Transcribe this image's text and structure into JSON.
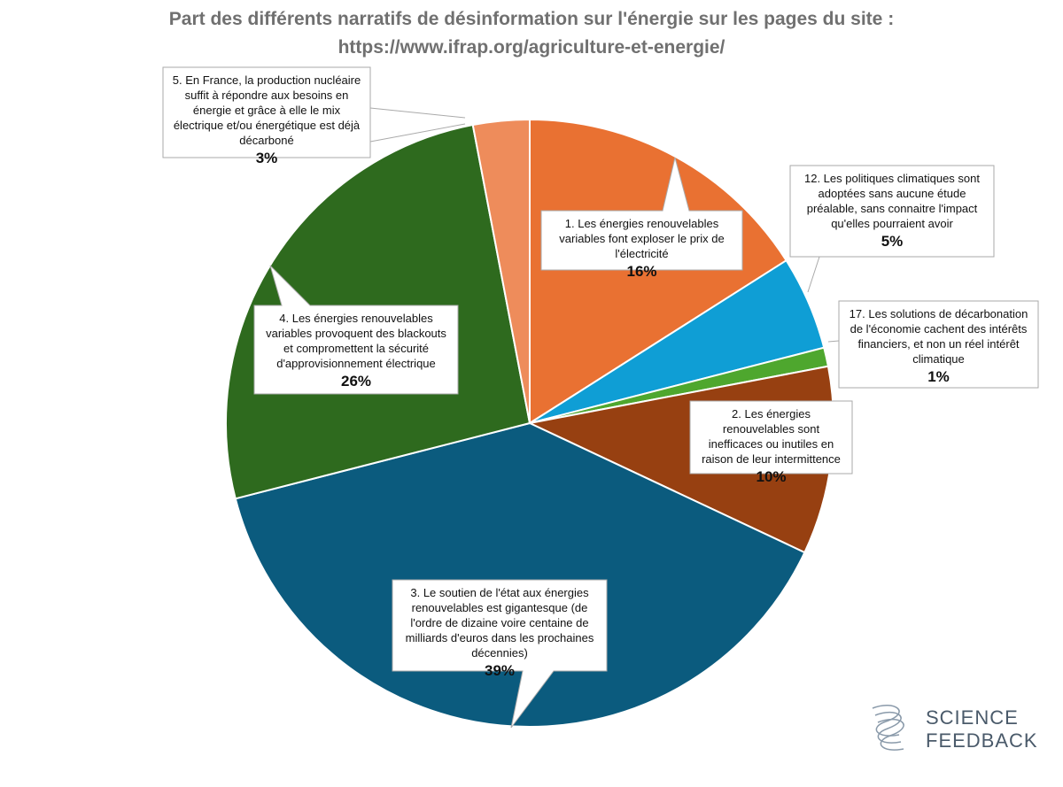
{
  "chart_data": {
    "type": "pie",
    "title": "Part des différents narratifs de désinformation sur l'énergie sur les pages du site :",
    "subtitle": "https://www.ifrap.org/agriculture-et-energie/",
    "categories": [
      "1. Les énergies renouvelables variables font exploser le prix de l'électricité",
      "12. Les politiques climatiques sont adoptées sans aucune étude préalable, sans connaitre l'impact qu'elles pourraient avoir",
      "17. Les solutions de décarbonation de l'économie cachent des intérêts financiers, et non un réel intérêt climatique",
      "2. Les énergies renouvelables sont inefficaces ou inutiles en raison de leur intermittence",
      "3. Le soutien de l'état aux énergies renouvelables est gigantesque (de l'ordre de dizaine voire centaine de milliards d'euros dans les prochaines décennies)",
      "4. Les énergies renouvelables variables provoquent des blackouts et compromettent la sécurité d'approvisionnement électrique",
      "5. En France, la production nucléaire suffit à répondre aux besoins en énergie et grâce à elle le mix électrique et/ou énergétique est déjà décarboné"
    ],
    "values": [
      16,
      5,
      1,
      10,
      39,
      26,
      3
    ],
    "value_labels": [
      "16%",
      "5%",
      "1%",
      "10%",
      "39%",
      "26%",
      "3%"
    ],
    "colors": [
      "#E97132",
      "#0F9ED5",
      "#4EA72E",
      "#974011",
      "#0B5B7E",
      "#2E6A1E",
      "#EE8C5B"
    ],
    "logo": [
      "SCIENCE",
      "FEEDBACK"
    ]
  }
}
